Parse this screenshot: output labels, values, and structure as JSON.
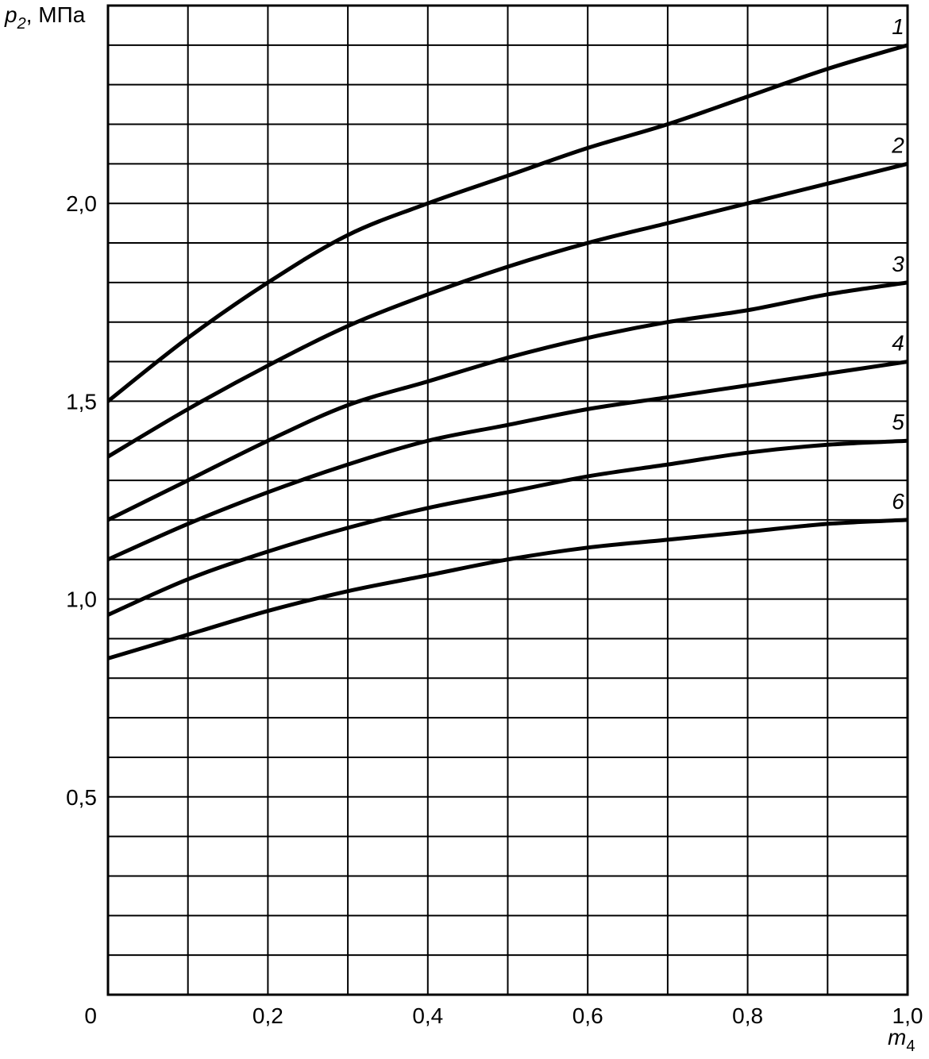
{
  "chart_data": {
    "type": "line",
    "y_label": "p",
    "y_label_sub": "2",
    "y_label_unit": ", МПа",
    "x_label": "m",
    "x_label_sub": "4",
    "x": [
      0,
      0.1,
      0.2,
      0.3,
      0.4,
      0.5,
      0.6,
      0.7,
      0.8,
      0.9,
      1.0
    ],
    "series": [
      {
        "name": "1",
        "color": "#000000",
        "values": [
          1.5,
          1.66,
          1.8,
          1.92,
          2.0,
          2.07,
          2.14,
          2.2,
          2.27,
          2.34,
          2.4
        ]
      },
      {
        "name": "2",
        "color": "#000000",
        "values": [
          1.36,
          1.48,
          1.59,
          1.69,
          1.77,
          1.84,
          1.9,
          1.95,
          2.0,
          2.05,
          2.1
        ]
      },
      {
        "name": "3",
        "color": "#000000",
        "values": [
          1.2,
          1.3,
          1.4,
          1.49,
          1.55,
          1.61,
          1.66,
          1.7,
          1.73,
          1.77,
          1.8
        ]
      },
      {
        "name": "4",
        "color": "#000000",
        "values": [
          1.1,
          1.19,
          1.27,
          1.34,
          1.4,
          1.44,
          1.48,
          1.51,
          1.54,
          1.57,
          1.6
        ]
      },
      {
        "name": "5",
        "color": "#000000",
        "values": [
          0.96,
          1.05,
          1.12,
          1.18,
          1.23,
          1.27,
          1.31,
          1.34,
          1.37,
          1.39,
          1.4
        ]
      },
      {
        "name": "6",
        "color": "#000000",
        "values": [
          0.85,
          0.91,
          0.97,
          1.02,
          1.06,
          1.1,
          1.13,
          1.15,
          1.17,
          1.19,
          1.2
        ]
      }
    ],
    "xlim": [
      0,
      1.0
    ],
    "ylim": [
      0,
      2.5
    ],
    "xticks": [
      0,
      {
        "value": 0.2,
        "label": "0,2"
      },
      {
        "value": 0.4,
        "label": "0,4"
      },
      {
        "value": 0.6,
        "label": "0,6"
      },
      {
        "value": 0.8,
        "label": "0,8"
      },
      {
        "value": 1.0,
        "label": "1,0"
      }
    ],
    "yticks": [
      {
        "value": 0.5,
        "label": "0,5"
      },
      {
        "value": 1.0,
        "label": "1,0"
      },
      {
        "value": 1.5,
        "label": "1,5"
      },
      {
        "value": 2.0,
        "label": "2,0"
      }
    ],
    "xgrid": [
      0.1,
      0.2,
      0.3,
      0.4,
      0.5,
      0.6,
      0.7,
      0.8,
      0.9
    ],
    "ygrid": [
      0.1,
      0.2,
      0.3,
      0.4,
      0.5,
      0.6,
      0.7,
      0.8,
      0.9,
      1.0,
      1.1,
      1.2,
      1.3,
      1.4,
      1.5,
      1.6,
      1.7,
      1.8,
      1.9,
      2.0,
      2.1,
      2.2,
      2.3,
      2.4
    ],
    "grid": true
  }
}
